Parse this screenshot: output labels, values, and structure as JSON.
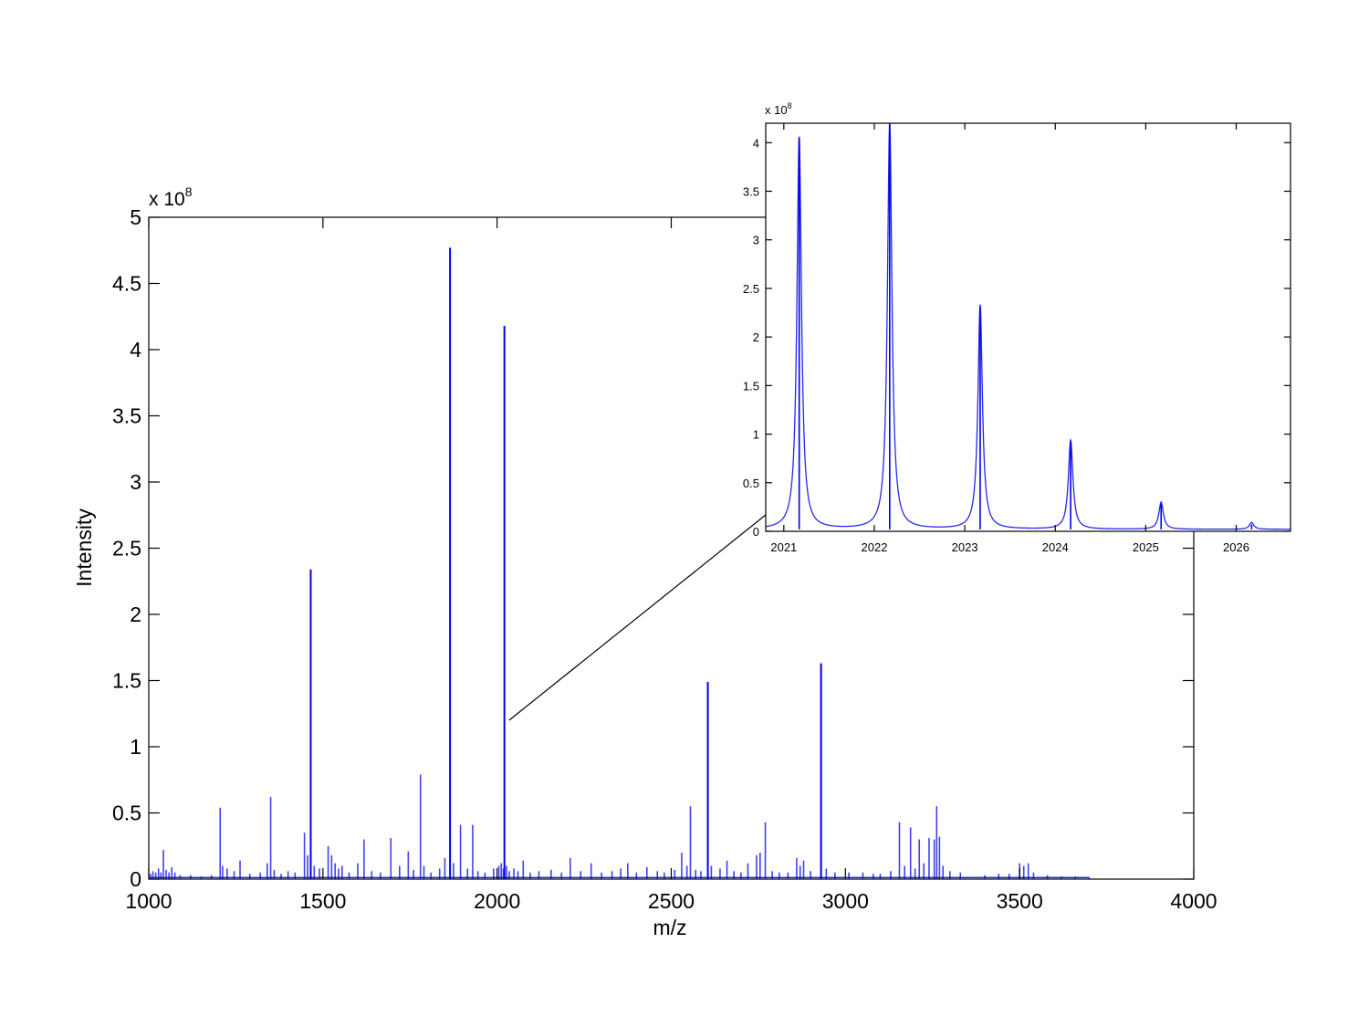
{
  "chart_data": [
    {
      "id": "main",
      "type": "line",
      "title": "",
      "xlabel": "m/z",
      "ylabel": "Intensity",
      "exponent_label": {
        "base": "x 10",
        "power": "8"
      },
      "xlim": [
        1000,
        4000
      ],
      "ylim": [
        0,
        5
      ],
      "xticks": [
        1000,
        1500,
        2000,
        2500,
        3000,
        3500,
        4000
      ],
      "yticks": [
        0,
        0.5,
        1,
        1.5,
        2,
        2.5,
        3,
        3.5,
        4,
        4.5,
        5
      ],
      "xtick_labels": [
        "1000",
        "1500",
        "2000",
        "2500",
        "3000",
        "3500",
        "4000"
      ],
      "ytick_labels": [
        "0",
        "0.5",
        "1",
        "1.5",
        "2",
        "2.5",
        "3",
        "3.5",
        "4",
        "4.5",
        "5"
      ],
      "grid": false,
      "series_color": "#0000ee",
      "series": [
        {
          "peaks": [
            [
              1005,
              0.04
            ],
            [
              1012,
              0.06
            ],
            [
              1020,
              0.05
            ],
            [
              1028,
              0.08
            ],
            [
              1035,
              0.05
            ],
            [
              1042,
              0.22
            ],
            [
              1050,
              0.07
            ],
            [
              1058,
              0.05
            ],
            [
              1066,
              0.09
            ],
            [
              1075,
              0.05
            ],
            [
              1090,
              0.03
            ],
            [
              1120,
              0.03
            ],
            [
              1150,
              0.02
            ],
            [
              1180,
              0.03
            ],
            [
              1205,
              0.54
            ],
            [
              1212,
              0.1
            ],
            [
              1225,
              0.08
            ],
            [
              1245,
              0.06
            ],
            [
              1262,
              0.14
            ],
            [
              1290,
              0.04
            ],
            [
              1320,
              0.05
            ],
            [
              1340,
              0.12
            ],
            [
              1350,
              0.62
            ],
            [
              1360,
              0.07
            ],
            [
              1380,
              0.04
            ],
            [
              1400,
              0.06
            ],
            [
              1420,
              0.05
            ],
            [
              1447,
              0.35
            ],
            [
              1456,
              0.18
            ],
            [
              1465,
              2.34
            ],
            [
              1475,
              0.1
            ],
            [
              1490,
              0.08
            ],
            [
              1515,
              0.25
            ],
            [
              1525,
              0.18
            ],
            [
              1535,
              0.12
            ],
            [
              1545,
              0.08
            ],
            [
              1555,
              0.1
            ],
            [
              1575,
              0.05
            ],
            [
              1600,
              0.12
            ],
            [
              1618,
              0.3
            ],
            [
              1640,
              0.06
            ],
            [
              1665,
              0.05
            ],
            [
              1695,
              0.31
            ],
            [
              1720,
              0.1
            ],
            [
              1745,
              0.21
            ],
            [
              1760,
              0.07
            ],
            [
              1780,
              0.79
            ],
            [
              1790,
              0.1
            ],
            [
              1810,
              0.05
            ],
            [
              1835,
              0.08
            ],
            [
              1850,
              0.16
            ],
            [
              1865,
              4.77
            ],
            [
              1875,
              0.12
            ],
            [
              1895,
              0.41
            ],
            [
              1915,
              0.08
            ],
            [
              1930,
              0.41
            ],
            [
              1945,
              0.06
            ],
            [
              1965,
              0.05
            ],
            [
              1990,
              0.08
            ],
            [
              2005,
              0.1
            ],
            [
              2012,
              0.12
            ],
            [
              2018,
              0.08
            ],
            [
              2021,
              4.18
            ],
            [
              2027,
              0.1
            ],
            [
              2035,
              0.06
            ],
            [
              2048,
              0.08
            ],
            [
              2060,
              0.06
            ],
            [
              2075,
              0.14
            ],
            [
              2095,
              0.05
            ],
            [
              2120,
              0.06
            ],
            [
              2155,
              0.07
            ],
            [
              2185,
              0.05
            ],
            [
              2210,
              0.16
            ],
            [
              2240,
              0.06
            ],
            [
              2270,
              0.12
            ],
            [
              2300,
              0.05
            ],
            [
              2330,
              0.06
            ],
            [
              2355,
              0.08
            ],
            [
              2375,
              0.12
            ],
            [
              2400,
              0.05
            ],
            [
              2430,
              0.09
            ],
            [
              2460,
              0.06
            ],
            [
              2480,
              0.05
            ],
            [
              2510,
              0.07
            ],
            [
              2530,
              0.2
            ],
            [
              2545,
              0.1
            ],
            [
              2555,
              0.55
            ],
            [
              2570,
              0.07
            ],
            [
              2585,
              0.06
            ],
            [
              2605,
              1.49
            ],
            [
              2615,
              0.1
            ],
            [
              2640,
              0.08
            ],
            [
              2660,
              0.14
            ],
            [
              2680,
              0.06
            ],
            [
              2700,
              0.05
            ],
            [
              2720,
              0.12
            ],
            [
              2745,
              0.18
            ],
            [
              2755,
              0.2
            ],
            [
              2770,
              0.43
            ],
            [
              2790,
              0.06
            ],
            [
              2810,
              0.05
            ],
            [
              2835,
              0.05
            ],
            [
              2860,
              0.16
            ],
            [
              2870,
              0.1
            ],
            [
              2880,
              0.14
            ],
            [
              2900,
              0.06
            ],
            [
              2930,
              1.63
            ],
            [
              2945,
              0.08
            ],
            [
              2970,
              0.05
            ],
            [
              3010,
              0.05
            ],
            [
              3050,
              0.05
            ],
            [
              3080,
              0.04
            ],
            [
              3100,
              0.04
            ],
            [
              3130,
              0.06
            ],
            [
              3155,
              0.43
            ],
            [
              3170,
              0.1
            ],
            [
              3187,
              0.39
            ],
            [
              3200,
              0.08
            ],
            [
              3212,
              0.3
            ],
            [
              3225,
              0.12
            ],
            [
              3240,
              0.31
            ],
            [
              3255,
              0.3
            ],
            [
              3262,
              0.55
            ],
            [
              3270,
              0.32
            ],
            [
              3280,
              0.1
            ],
            [
              3300,
              0.06
            ],
            [
              3330,
              0.05
            ],
            [
              3400,
              0.03
            ],
            [
              3440,
              0.04
            ],
            [
              3470,
              0.04
            ],
            [
              3500,
              0.12
            ],
            [
              3512,
              0.1
            ],
            [
              3525,
              0.12
            ],
            [
              3540,
              0.05
            ],
            [
              3580,
              0.03
            ],
            [
              3620,
              0.02
            ],
            [
              3660,
              0.02
            ],
            [
              3700,
              0.01
            ]
          ]
        }
      ],
      "zoom_region": {
        "x": [
          2020.8,
          2026.6
        ]
      }
    },
    {
      "id": "inset",
      "type": "line",
      "title": "",
      "xlabel": "",
      "ylabel": "",
      "exponent_label": {
        "base": "x 10",
        "power": "8"
      },
      "xlim": [
        2020.8,
        2026.6
      ],
      "ylim": [
        0,
        4.2
      ],
      "xticks": [
        2021,
        2022,
        2023,
        2024,
        2025,
        2026
      ],
      "yticks": [
        0,
        0.5,
        1,
        1.5,
        2,
        2.5,
        3,
        3.5,
        4
      ],
      "xtick_labels": [
        "2021",
        "2022",
        "2023",
        "2024",
        "2025",
        "2026"
      ],
      "ytick_labels": [
        "0",
        "0.5",
        "1",
        "1.5",
        "2",
        "2.5",
        "3",
        "3.5",
        "4"
      ],
      "grid": false,
      "series_color": "#0000ee",
      "series": [
        {
          "peaks": [
            [
              2021.17,
              4.05
            ],
            [
              2022.17,
              4.2
            ],
            [
              2023.17,
              2.31
            ],
            [
              2024.17,
              0.92
            ],
            [
              2025.17,
              0.28
            ],
            [
              2026.17,
              0.07
            ]
          ],
          "baseline": 0.02,
          "peak_width": 0.03
        }
      ]
    }
  ]
}
